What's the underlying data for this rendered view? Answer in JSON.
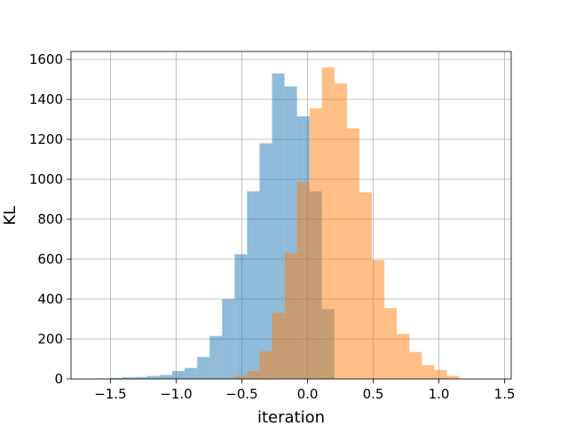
{
  "chart_data": {
    "type": "histogram",
    "title": "",
    "xlabel": "iteration",
    "ylabel": "KL",
    "xlim": [
      -1.8,
      1.55
    ],
    "ylim": [
      0,
      1640
    ],
    "xticks": [
      -1.5,
      -1.0,
      -0.5,
      0.0,
      0.5,
      1.0,
      1.5
    ],
    "xtick_labels": [
      "−1.5",
      "−1.0",
      "−0.5",
      "0.0",
      "0.5",
      "1.0",
      "1.5"
    ],
    "yticks": [
      0,
      200,
      400,
      600,
      800,
      1000,
      1200,
      1400,
      1600
    ],
    "ytick_labels": [
      "0",
      "200",
      "400",
      "600",
      "800",
      "1000",
      "1200",
      "1400",
      "1600"
    ],
    "grid": true,
    "bin_width": 0.095,
    "series": [
      {
        "color": "#1f77b4",
        "opacity": 0.5,
        "bins_left": [
          -1.6,
          -1.505,
          -1.41,
          -1.315,
          -1.22,
          -1.125,
          -1.03,
          -0.935,
          -0.84,
          -0.745,
          -0.65,
          -0.555,
          -0.46,
          -0.365,
          -0.27,
          -0.175,
          -0.08,
          0.015,
          0.11
        ],
        "counts": [
          2,
          5,
          8,
          10,
          15,
          20,
          40,
          55,
          110,
          215,
          400,
          625,
          940,
          1180,
          1530,
          1465,
          1315,
          940,
          350
        ]
      },
      {
        "color": "#ff7f0e",
        "opacity": 0.5,
        "bins_left": [
          -0.555,
          -0.46,
          -0.365,
          -0.27,
          -0.175,
          -0.08,
          0.015,
          0.11,
          0.205,
          0.3,
          0.395,
          0.49,
          0.585,
          0.68,
          0.775,
          0.87,
          0.965,
          1.06
        ],
        "counts": [
          15,
          40,
          140,
          330,
          630,
          985,
          1355,
          1560,
          1480,
          1255,
          935,
          595,
          355,
          225,
          135,
          70,
          45,
          15
        ]
      }
    ]
  }
}
